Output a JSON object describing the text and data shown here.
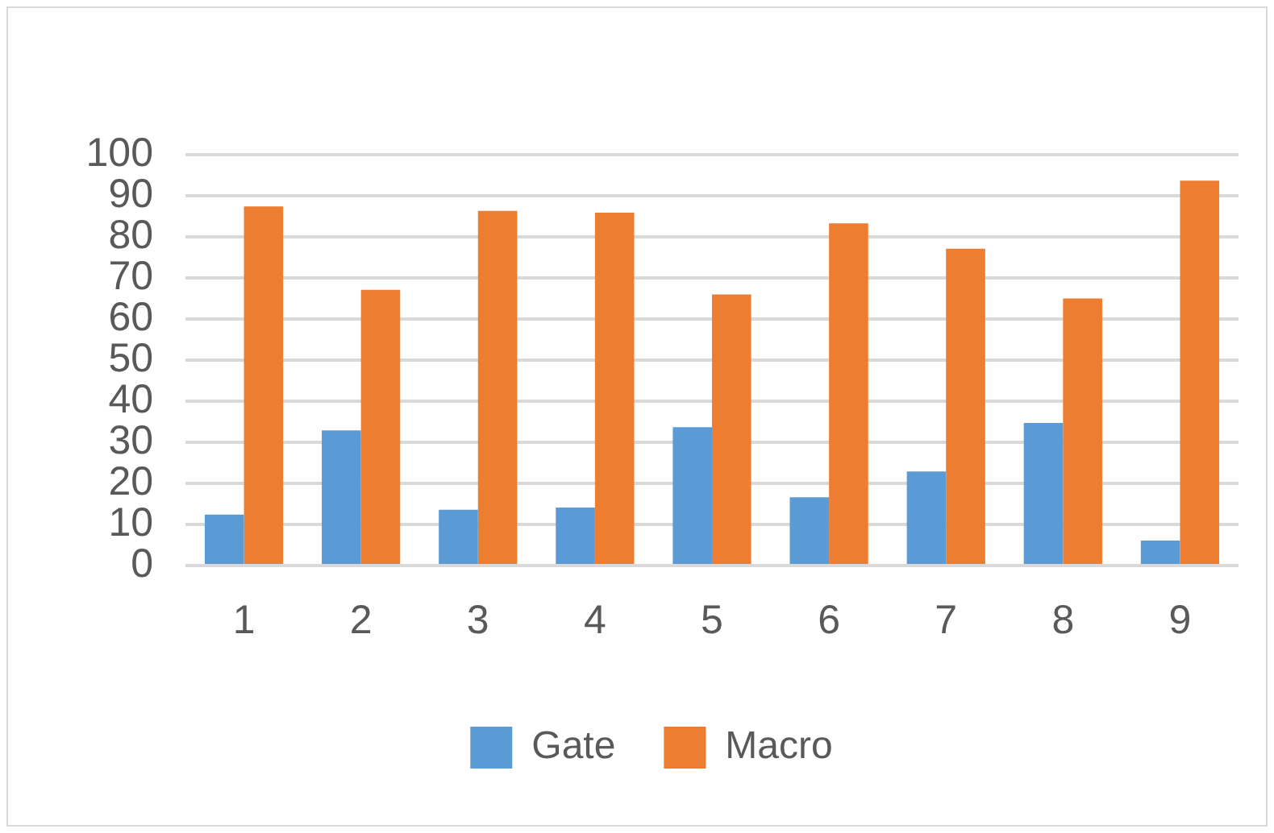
{
  "chart_data": {
    "type": "bar",
    "categories": [
      "1",
      "2",
      "3",
      "4",
      "5",
      "6",
      "7",
      "8",
      "9"
    ],
    "series": [
      {
        "name": "Gate",
        "color": "#5b9bd5",
        "values": [
          12.4,
          32.9,
          13.6,
          14.1,
          33.7,
          16.6,
          22.9,
          34.7,
          6.1
        ]
      },
      {
        "name": "Macro",
        "color": "#ed7d31",
        "values": [
          87.4,
          67.1,
          86.3,
          85.9,
          66,
          83.3,
          77.1,
          65,
          93.7
        ]
      }
    ],
    "ylim": [
      0,
      100
    ],
    "yticks": [
      0,
      10,
      20,
      30,
      40,
      50,
      60,
      70,
      80,
      90,
      100
    ],
    "grid": "y",
    "legend": "bottom"
  }
}
